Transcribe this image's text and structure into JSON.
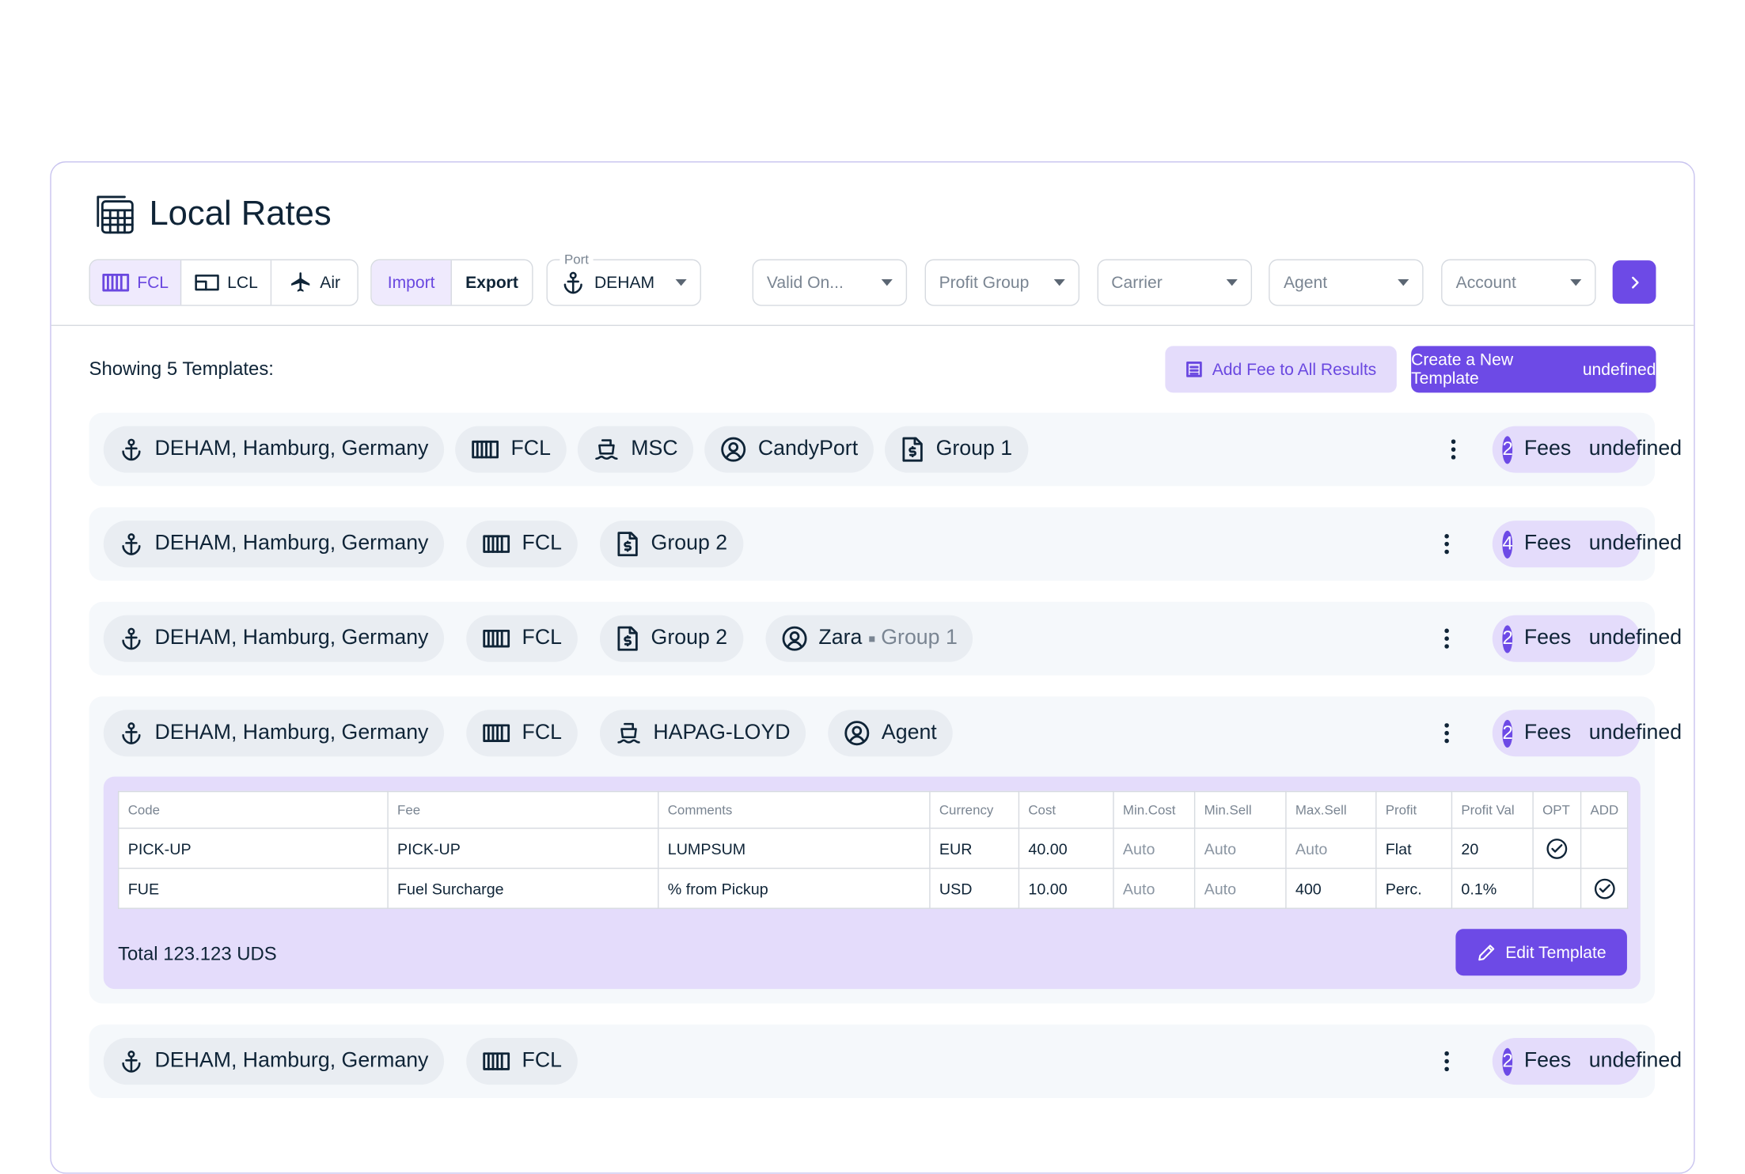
{
  "header": {
    "title": "Local Rates"
  },
  "filters": {
    "modes": [
      "FCL",
      "LCL",
      "Air"
    ],
    "active_mode": 0,
    "directions": [
      "Import",
      "Export"
    ],
    "active_direction": 0,
    "port": {
      "label": "Port",
      "value": "DEHAM"
    },
    "dropdowns": [
      "Valid On...",
      "Profit Group",
      "Carrier",
      "Agent",
      "Account"
    ]
  },
  "summary": {
    "text": "Showing 5 Templates:",
    "add_fee": "Add Fee to All Results",
    "create": "Create a New Template"
  },
  "templates": [
    {
      "chips": [
        {
          "text": "DEHAM, Hamburg, Germany"
        },
        {
          "text": "FCL"
        },
        {
          "text": "MSC"
        },
        {
          "text": "CandyPort"
        },
        {
          "text": "Group 1"
        }
      ],
      "fee_count": "2",
      "fee_label": "Fees",
      "expanded": false
    },
    {
      "chips": [
        {
          "text": "DEHAM, Hamburg, Germany"
        },
        {
          "text": "FCL"
        },
        {
          "text": "Group 2"
        }
      ],
      "fee_count": "4",
      "fee_label": "Fees",
      "expanded": false
    },
    {
      "chips": [
        {
          "text": "DEHAM, Hamburg, Germany"
        },
        {
          "text": "FCL"
        },
        {
          "text": "Group 2"
        },
        {
          "text": "Zara",
          "sub": "Group 1"
        }
      ],
      "fee_count": "2",
      "fee_label": "Fees",
      "expanded": false
    },
    {
      "chips": [
        {
          "text": "DEHAM, Hamburg, Germany"
        },
        {
          "text": "FCL"
        },
        {
          "text": "HAPAG-LOYD"
        },
        {
          "text": "Agent"
        }
      ],
      "fee_count": "2",
      "fee_label": "Fees",
      "expanded": true,
      "table": {
        "columns": [
          "Code",
          "Fee",
          "Comments",
          "Currency",
          "Cost",
          "Min.Cost",
          "Min.Sell",
          "Max.Sell",
          "Profit",
          "Profit Val",
          "OPT",
          "ADD"
        ],
        "rows": [
          {
            "cells": [
              "PICK-UP",
              "PICK-UP",
              "LUMPSUM",
              "EUR",
              "40.00",
              "Auto",
              "Auto",
              "Auto",
              "Flat",
              "20"
            ],
            "opt": true,
            "add": false
          },
          {
            "cells": [
              "FUE",
              "Fuel Surcharge",
              "% from Pickup",
              "USD",
              "10.00",
              "Auto",
              "Auto",
              "400",
              "Perc.",
              "0.1%"
            ],
            "opt": false,
            "add": true
          }
        ]
      },
      "total": "Total 123.123 UDS",
      "edit": "Edit Template"
    },
    {
      "chips": [
        {
          "text": "DEHAM, Hamburg, Germany"
        },
        {
          "text": "FCL"
        }
      ],
      "fee_count": "2",
      "fee_label": "Fees",
      "expanded": false
    }
  ]
}
